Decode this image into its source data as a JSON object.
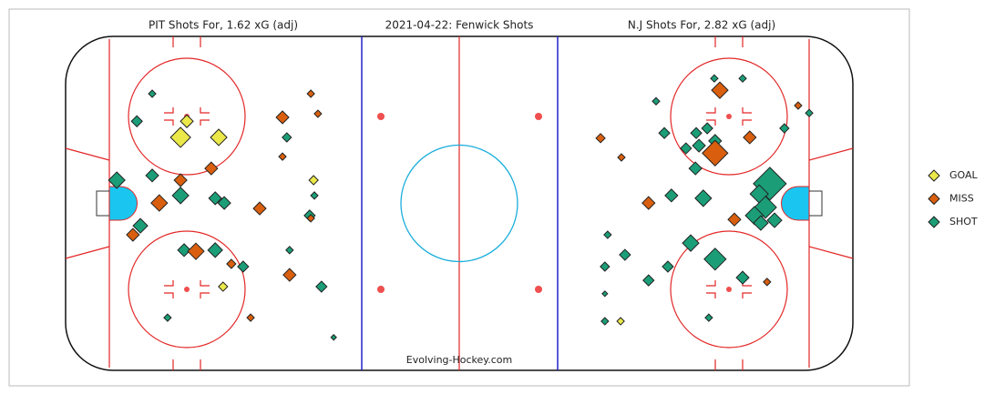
{
  "chart_data": {
    "type": "scatter",
    "title": "2021-04-22:  Fenwick Shots",
    "left_title": "PIT Shots For, 1.62 xG (adj)",
    "right_title": "N.J Shots For, 2.82 xG (adj)",
    "annotation": "Evolving-Hockey.com",
    "xlim": [
      -100,
      100
    ],
    "ylim": [
      -42.5,
      42.5
    ],
    "series": [
      {
        "name": "GOAL",
        "color": "#ebe84a",
        "x": [
          -69.2,
          -70.8,
          -61.1,
          -37.0,
          -60.0,
          41.0
        ],
        "y": [
          20.9,
          16.8,
          16.8,
          5.9,
          -21.2,
          -30.0
        ],
        "sizes": [
          0.054,
          0.134,
          0.09,
          0.028,
          0.028,
          0.018
        ]
      },
      {
        "name": "MISS",
        "color": "#d95f0e",
        "x": [
          -37.7,
          -35.9,
          -44.9,
          -44.9,
          -63.0,
          -70.8,
          -76.2,
          -50.7,
          -82.9,
          -66.9,
          -57.9,
          -43.1,
          -53.0,
          -37.7,
          66.2,
          86.1,
          35.9,
          41.2,
          65.0,
          73.8,
          48.1,
          69.9,
          78.2
        ],
        "y": [
          27.9,
          22.8,
          21.9,
          11.9,
          8.9,
          5.9,
          0.1,
          -1.3,
          -8.0,
          -12.2,
          -15.4,
          -18.2,
          -29.1,
          -3.8,
          28.8,
          24.9,
          16.6,
          11.7,
          12.8,
          16.8,
          0.1,
          -4.1,
          -20.0
        ],
        "sizes": [
          0.018,
          0.018,
          0.054,
          0.018,
          0.054,
          0.054,
          0.09,
          0.054,
          0.054,
          0.09,
          0.028,
          0.054,
          0.018,
          0.018,
          0.09,
          0.018,
          0.028,
          0.018,
          0.218,
          0.054,
          0.054,
          0.054,
          0.018
        ]
      },
      {
        "name": "SHOT",
        "color": "#1b9e77",
        "x": [
          -78.0,
          -81.9,
          -43.8,
          -87.0,
          -78.0,
          -70.8,
          -62.0,
          -59.7,
          -36.8,
          -38.0,
          -81.0,
          -69.9,
          -62.0,
          -54.9,
          -43.1,
          -35.0,
          -74.1,
          -31.9,
          50.0,
          64.8,
          72.0,
          88.9,
          52.1,
          60.2,
          63.0,
          82.6,
          57.6,
          60.9,
          65.0,
          60.0,
          53.9,
          62.0,
          78.9,
          76.2,
          77.8,
          75.0,
          80.1,
          76.6,
          37.7,
          42.1,
          58.8,
          65.0,
          37.0,
          53.0,
          72.0,
          48.1,
          37.0,
          63.4,
          37.0
        ],
        "y": [
          27.9,
          20.9,
          16.8,
          5.9,
          7.1,
          2.0,
          1.3,
          0.1,
          2.0,
          -3.1,
          -5.7,
          -11.9,
          -11.9,
          -16.1,
          -11.9,
          -21.2,
          -29.1,
          -34.1,
          26.0,
          31.8,
          31.8,
          23.0,
          17.9,
          17.9,
          19.1,
          19.1,
          14.0,
          14.7,
          15.9,
          8.9,
          2.0,
          1.3,
          5.0,
          2.4,
          -1.0,
          -3.1,
          -4.3,
          -5.0,
          -8.0,
          -13.1,
          -10.1,
          -14.2,
          -16.1,
          -16.1,
          -18.9,
          -19.6,
          -23.0,
          -29.1,
          -30.0
        ],
        "sizes": [
          0.018,
          0.04,
          0.028,
          0.09,
          0.054,
          0.09,
          0.054,
          0.054,
          0.018,
          0.04,
          0.071,
          0.054,
          0.071,
          0.04,
          0.018,
          0.04,
          0.018,
          0.01,
          0.018,
          0.018,
          0.018,
          0.018,
          0.04,
          0.04,
          0.04,
          0.028,
          0.04,
          0.054,
          0.054,
          0.054,
          0.054,
          0.09,
          0.36,
          0.11,
          0.16,
          0.11,
          0.071,
          0.071,
          0.018,
          0.04,
          0.09,
          0.16,
          0.028,
          0.04,
          0.054,
          0.04,
          0.01,
          0.018,
          0.018
        ]
      }
    ]
  }
}
